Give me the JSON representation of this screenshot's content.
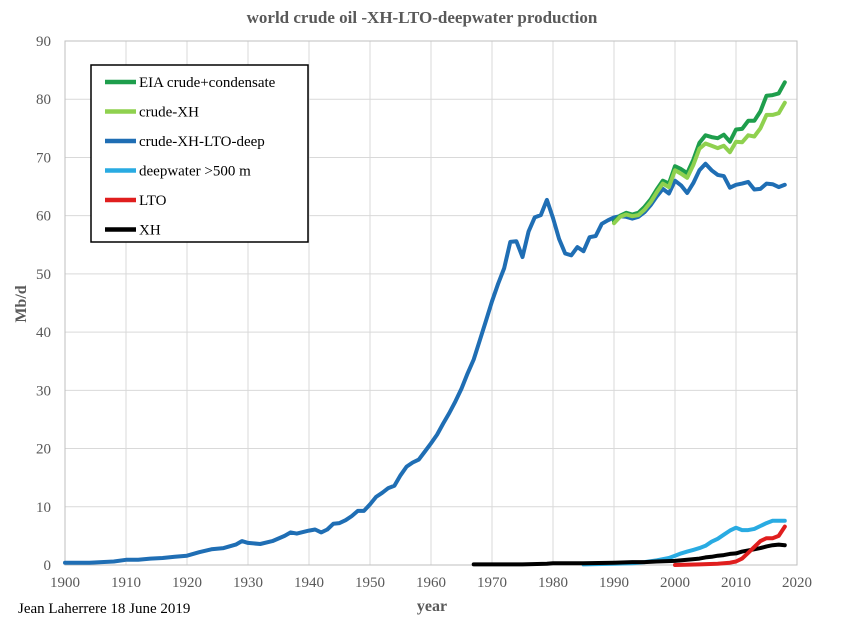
{
  "chart_data": {
    "type": "line",
    "title": "world crude oil -XH-LTO-deepwater production",
    "xlabel": "year",
    "ylabel": "Mb/d",
    "xlim": [
      1900,
      2020
    ],
    "ylim": [
      0,
      90
    ],
    "xticks": [
      1900,
      1910,
      1920,
      1930,
      1940,
      1950,
      1960,
      1970,
      1980,
      1990,
      2000,
      2010,
      2020
    ],
    "yticks": [
      0,
      10,
      20,
      30,
      40,
      50,
      60,
      70,
      80,
      90
    ],
    "grid": true,
    "legend_position": "top-left",
    "credit": "Jean Laherrere 18 June 2019",
    "series": [
      {
        "name": "EIA crude+condensate",
        "color": "#1e9e4c",
        "points": [
          [
            1990,
            59
          ],
          [
            1991,
            60
          ],
          [
            1992,
            60.5
          ],
          [
            1993,
            60.2
          ],
          [
            1994,
            60.5
          ],
          [
            1995,
            61.5
          ],
          [
            1996,
            62.8
          ],
          [
            1997,
            64.5
          ],
          [
            1998,
            66
          ],
          [
            1999,
            65.5
          ],
          [
            2000,
            68.5
          ],
          [
            2001,
            68
          ],
          [
            2002,
            67.3
          ],
          [
            2003,
            69.6
          ],
          [
            2004,
            72.5
          ],
          [
            2005,
            73.8
          ],
          [
            2006,
            73.5
          ],
          [
            2007,
            73.3
          ],
          [
            2008,
            73.9
          ],
          [
            2009,
            72.7
          ],
          [
            2010,
            74.8
          ],
          [
            2011,
            74.9
          ],
          [
            2012,
            76.3
          ],
          [
            2013,
            76.3
          ],
          [
            2014,
            77.9
          ],
          [
            2015,
            80.6
          ],
          [
            2016,
            80.7
          ],
          [
            2017,
            81
          ],
          [
            2018,
            82.9
          ]
        ]
      },
      {
        "name": "crude-XH",
        "color": "#8fd14f",
        "points": [
          [
            1990,
            58.7
          ],
          [
            1991,
            59.8
          ],
          [
            1992,
            60.2
          ],
          [
            1993,
            59.9
          ],
          [
            1994,
            60.1
          ],
          [
            1995,
            61
          ],
          [
            1996,
            62.3
          ],
          [
            1997,
            64
          ],
          [
            1998,
            65.5
          ],
          [
            1999,
            64.9
          ],
          [
            2000,
            67.8
          ],
          [
            2001,
            67.2
          ],
          [
            2002,
            66.5
          ],
          [
            2003,
            68.7
          ],
          [
            2004,
            71.5
          ],
          [
            2005,
            72.4
          ],
          [
            2006,
            72
          ],
          [
            2007,
            71.6
          ],
          [
            2008,
            72
          ],
          [
            2009,
            70.9
          ],
          [
            2010,
            72.7
          ],
          [
            2011,
            72.6
          ],
          [
            2012,
            73.8
          ],
          [
            2013,
            73.6
          ],
          [
            2014,
            75
          ],
          [
            2015,
            77.3
          ],
          [
            2016,
            77.3
          ],
          [
            2017,
            77.6
          ],
          [
            2018,
            79.4
          ]
        ]
      },
      {
        "name": "crude-XH-LTO-deep",
        "color": "#1f6eb4",
        "points": [
          [
            1900,
            0.4
          ],
          [
            1902,
            0.4
          ],
          [
            1904,
            0.4
          ],
          [
            1906,
            0.5
          ],
          [
            1908,
            0.6
          ],
          [
            1910,
            0.9
          ],
          [
            1912,
            0.9
          ],
          [
            1914,
            1.1
          ],
          [
            1916,
            1.2
          ],
          [
            1918,
            1.4
          ],
          [
            1920,
            1.6
          ],
          [
            1922,
            2.2
          ],
          [
            1924,
            2.7
          ],
          [
            1926,
            2.9
          ],
          [
            1928,
            3.5
          ],
          [
            1929,
            4.1
          ],
          [
            1930,
            3.8
          ],
          [
            1932,
            3.6
          ],
          [
            1934,
            4.1
          ],
          [
            1936,
            5
          ],
          [
            1937,
            5.6
          ],
          [
            1938,
            5.4
          ],
          [
            1940,
            5.9
          ],
          [
            1941,
            6.1
          ],
          [
            1942,
            5.6
          ],
          [
            1943,
            6.1
          ],
          [
            1944,
            7.1
          ],
          [
            1945,
            7.2
          ],
          [
            1946,
            7.7
          ],
          [
            1947,
            8.4
          ],
          [
            1948,
            9.3
          ],
          [
            1949,
            9.3
          ],
          [
            1950,
            10.4
          ],
          [
            1951,
            11.7
          ],
          [
            1952,
            12.4
          ],
          [
            1953,
            13.2
          ],
          [
            1954,
            13.6
          ],
          [
            1955,
            15.4
          ],
          [
            1956,
            16.9
          ],
          [
            1957,
            17.6
          ],
          [
            1958,
            18.1
          ],
          [
            1959,
            19.5
          ],
          [
            1960,
            20.9
          ],
          [
            1961,
            22.4
          ],
          [
            1962,
            24.3
          ],
          [
            1963,
            26.1
          ],
          [
            1964,
            28.1
          ],
          [
            1965,
            30.3
          ],
          [
            1966,
            32.9
          ],
          [
            1967,
            35.3
          ],
          [
            1968,
            38.6
          ],
          [
            1969,
            41.9
          ],
          [
            1970,
            45.3
          ],
          [
            1971,
            48.3
          ],
          [
            1972,
            51
          ],
          [
            1973,
            55.5
          ],
          [
            1974,
            55.6
          ],
          [
            1975,
            52.9
          ],
          [
            1976,
            57.3
          ],
          [
            1977,
            59.7
          ],
          [
            1978,
            60.1
          ],
          [
            1979,
            62.7
          ],
          [
            1980,
            59.6
          ],
          [
            1981,
            56
          ],
          [
            1982,
            53.5
          ],
          [
            1983,
            53.2
          ],
          [
            1984,
            54.6
          ],
          [
            1985,
            53.9
          ],
          [
            1986,
            56.3
          ],
          [
            1987,
            56.5
          ],
          [
            1988,
            58.6
          ],
          [
            1989,
            59.2
          ],
          [
            1990,
            59.7
          ],
          [
            1991,
            59.9
          ],
          [
            1992,
            59.8
          ],
          [
            1993,
            59.5
          ],
          [
            1994,
            59.8
          ],
          [
            1995,
            60.6
          ],
          [
            1996,
            61.8
          ],
          [
            1997,
            63.3
          ],
          [
            1998,
            64.6
          ],
          [
            1999,
            63.8
          ],
          [
            2000,
            66
          ],
          [
            2001,
            65.2
          ],
          [
            2002,
            63.9
          ],
          [
            2003,
            65.6
          ],
          [
            2004,
            67.8
          ],
          [
            2005,
            68.9
          ],
          [
            2006,
            67.8
          ],
          [
            2007,
            67
          ],
          [
            2008,
            66.8
          ],
          [
            2009,
            64.8
          ],
          [
            2010,
            65.3
          ],
          [
            2011,
            65.5
          ],
          [
            2012,
            65.8
          ],
          [
            2013,
            64.5
          ],
          [
            2014,
            64.6
          ],
          [
            2015,
            65.5
          ],
          [
            2016,
            65.4
          ],
          [
            2017,
            64.9
          ],
          [
            2018,
            65.3
          ]
        ]
      },
      {
        "name": "deepwater >500 m",
        "color": "#29abe2",
        "points": [
          [
            1985,
            0.1
          ],
          [
            1990,
            0.2
          ],
          [
            1993,
            0.3
          ],
          [
            1995,
            0.5
          ],
          [
            1997,
            0.8
          ],
          [
            1999,
            1.2
          ],
          [
            2000,
            1.6
          ],
          [
            2001,
            2
          ],
          [
            2002,
            2.3
          ],
          [
            2003,
            2.6
          ],
          [
            2004,
            2.9
          ],
          [
            2005,
            3.3
          ],
          [
            2006,
            4
          ],
          [
            2007,
            4.5
          ],
          [
            2008,
            5.2
          ],
          [
            2009,
            5.9
          ],
          [
            2010,
            6.4
          ],
          [
            2011,
            6
          ],
          [
            2012,
            6
          ],
          [
            2013,
            6.2
          ],
          [
            2014,
            6.7
          ],
          [
            2015,
            7.2
          ],
          [
            2016,
            7.6
          ],
          [
            2017,
            7.6
          ],
          [
            2018,
            7.6
          ]
        ]
      },
      {
        "name": "LTO",
        "color": "#e01e1e",
        "points": [
          [
            2000,
            0
          ],
          [
            2004,
            0.1
          ],
          [
            2007,
            0.2
          ],
          [
            2008,
            0.3
          ],
          [
            2009,
            0.4
          ],
          [
            2010,
            0.6
          ],
          [
            2011,
            1.1
          ],
          [
            2012,
            2.1
          ],
          [
            2013,
            3.1
          ],
          [
            2014,
            4.1
          ],
          [
            2015,
            4.6
          ],
          [
            2016,
            4.6
          ],
          [
            2017,
            5
          ],
          [
            2018,
            6.6
          ]
        ]
      },
      {
        "name": "XH",
        "color": "#000000",
        "points": [
          [
            1967,
            0.1
          ],
          [
            1975,
            0.1
          ],
          [
            1979,
            0.2
          ],
          [
            1980,
            0.3
          ],
          [
            1985,
            0.3
          ],
          [
            1990,
            0.4
          ],
          [
            1993,
            0.5
          ],
          [
            1995,
            0.5
          ],
          [
            1997,
            0.6
          ],
          [
            2000,
            0.7
          ],
          [
            2002,
            0.9
          ],
          [
            2004,
            1.1
          ],
          [
            2005,
            1.3
          ],
          [
            2006,
            1.4
          ],
          [
            2007,
            1.6
          ],
          [
            2008,
            1.7
          ],
          [
            2009,
            1.9
          ],
          [
            2010,
            2
          ],
          [
            2011,
            2.3
          ],
          [
            2012,
            2.5
          ],
          [
            2013,
            2.7
          ],
          [
            2014,
            2.9
          ],
          [
            2015,
            3.2
          ],
          [
            2016,
            3.4
          ],
          [
            2017,
            3.5
          ],
          [
            2018,
            3.4
          ]
        ]
      }
    ]
  }
}
